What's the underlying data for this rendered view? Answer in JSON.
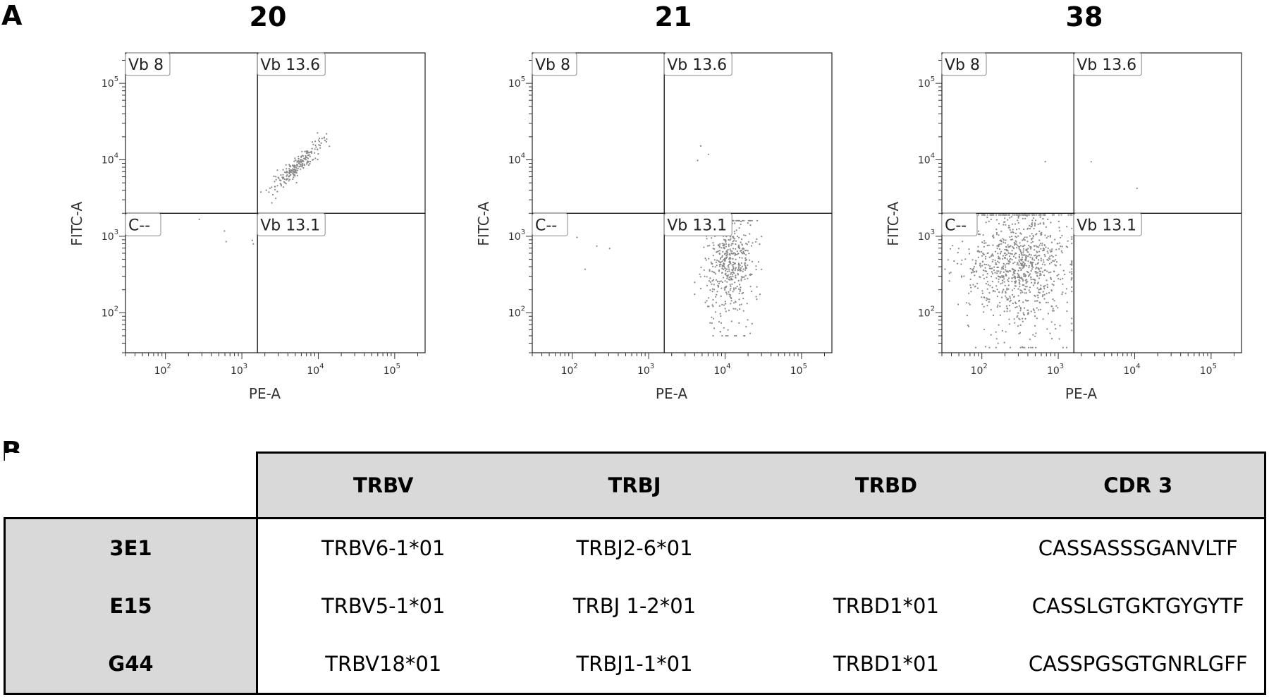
{
  "panel_labels": {
    "a": "A",
    "b": "B"
  },
  "chart_data": [
    {
      "type": "scatter",
      "title": "20",
      "xlabel": "PE-A",
      "ylabel": "FITC-A",
      "xscale": "log",
      "yscale": "log",
      "xlim": [
        30,
        250000
      ],
      "ylim": [
        30,
        250000
      ],
      "x_ticks": [
        100,
        1000,
        10000,
        100000
      ],
      "y_ticks": [
        100,
        1000,
        10000,
        100000
      ],
      "x_tick_labels": [
        "10",
        "10",
        "10",
        "10"
      ],
      "x_tick_exponents": [
        "2",
        "3",
        "4",
        "5"
      ],
      "y_tick_labels": [
        "10",
        "10",
        "10",
        "10"
      ],
      "y_tick_exponents": [
        "2",
        "3",
        "4",
        "5"
      ],
      "gate_divider": {
        "x": 1600,
        "y": 2000
      },
      "gates": {
        "top_left": "Vb 8",
        "top_right": "Vb 13.6",
        "bottom_left": "C--",
        "bottom_right": "Vb 13.1"
      },
      "populations": [
        {
          "quadrant": "top-right",
          "shape": "diagonal",
          "center_x": 6000,
          "center_y": 8000,
          "x_range": [
            2200,
            12500
          ],
          "y_range": [
            3500,
            20000
          ],
          "count": 220
        },
        {
          "quadrant": "bottom-left",
          "shape": "sparse",
          "center_x": 600,
          "center_y": 1000,
          "count": 5
        }
      ]
    },
    {
      "type": "scatter",
      "title": "21",
      "xlabel": "PE-A",
      "ylabel": "FITC-A",
      "xscale": "log",
      "yscale": "log",
      "xlim": [
        30,
        250000
      ],
      "ylim": [
        30,
        250000
      ],
      "x_ticks": [
        100,
        1000,
        10000,
        100000
      ],
      "y_ticks": [
        100,
        1000,
        10000,
        100000
      ],
      "x_tick_labels": [
        "10",
        "10",
        "10",
        "10"
      ],
      "x_tick_exponents": [
        "2",
        "3",
        "4",
        "5"
      ],
      "y_tick_labels": [
        "10",
        "10",
        "10",
        "10"
      ],
      "y_tick_exponents": [
        "2",
        "3",
        "4",
        "5"
      ],
      "gate_divider": {
        "x": 1600,
        "y": 2000
      },
      "gates": {
        "top_left": "Vb 8",
        "top_right": "Vb 13.6",
        "bottom_left": "C--",
        "bottom_right": "Vb 13.1"
      },
      "populations": [
        {
          "quadrant": "bottom-right",
          "shape": "cloud",
          "center_x": 11000,
          "center_y": 450,
          "x_range": [
            4000,
            30000
          ],
          "y_range": [
            50,
            1600
          ],
          "count": 520
        },
        {
          "quadrant": "top-right",
          "shape": "sparse",
          "center_x": 8000,
          "center_y": 10000,
          "count": 3
        },
        {
          "quadrant": "bottom-left",
          "shape": "sparse",
          "center_x": 300,
          "center_y": 600,
          "count": 4
        }
      ]
    },
    {
      "type": "scatter",
      "title": "38",
      "xlabel": "PE-A",
      "ylabel": "FITC-A",
      "xscale": "log",
      "yscale": "log",
      "xlim": [
        30,
        250000
      ],
      "ylim": [
        30,
        250000
      ],
      "x_ticks": [
        100,
        1000,
        10000,
        100000
      ],
      "y_ticks": [
        100,
        1000,
        10000,
        100000
      ],
      "x_tick_labels": [
        "10",
        "10",
        "10",
        "10"
      ],
      "x_tick_exponents": [
        "2",
        "3",
        "4",
        "5"
      ],
      "y_tick_labels": [
        "10",
        "10",
        "10",
        "10"
      ],
      "y_tick_exponents": [
        "2",
        "3",
        "4",
        "5"
      ],
      "gate_divider": {
        "x": 1600,
        "y": 2000
      },
      "gates": {
        "top_left": "Vb 8",
        "top_right": "Vb 13.6",
        "bottom_left": "C--",
        "bottom_right": "Vb 13.1"
      },
      "populations": [
        {
          "quadrant": "bottom-left",
          "shape": "cloud",
          "center_x": 300,
          "center_y": 450,
          "x_range": [
            30,
            1500
          ],
          "y_range": [
            35,
            1900
          ],
          "count": 1000
        },
        {
          "quadrant": "top-right",
          "shape": "sparse",
          "center_x": 3000,
          "center_y": 7500,
          "count": 3
        }
      ]
    }
  ],
  "table": {
    "headers": [
      "TRBV",
      "TRBJ",
      "TRBD",
      "CDR 3"
    ],
    "rows": [
      {
        "label": "3E1",
        "cells": [
          "TRBV6-1*01",
          "TRBJ2-6*01",
          "",
          "CASSASSSGANVLTF"
        ]
      },
      {
        "label": "E15",
        "cells": [
          "TRBV5-1*01",
          "TRBJ 1-2*01",
          "TRBD1*01",
          "CASSLGTGKTGYGYTF"
        ]
      },
      {
        "label": "G44",
        "cells": [
          "TRBV18*01",
          "TRBJ1-1*01",
          "TRBD1*01",
          "CASSPGSGTGNRLGFF"
        ]
      }
    ]
  }
}
